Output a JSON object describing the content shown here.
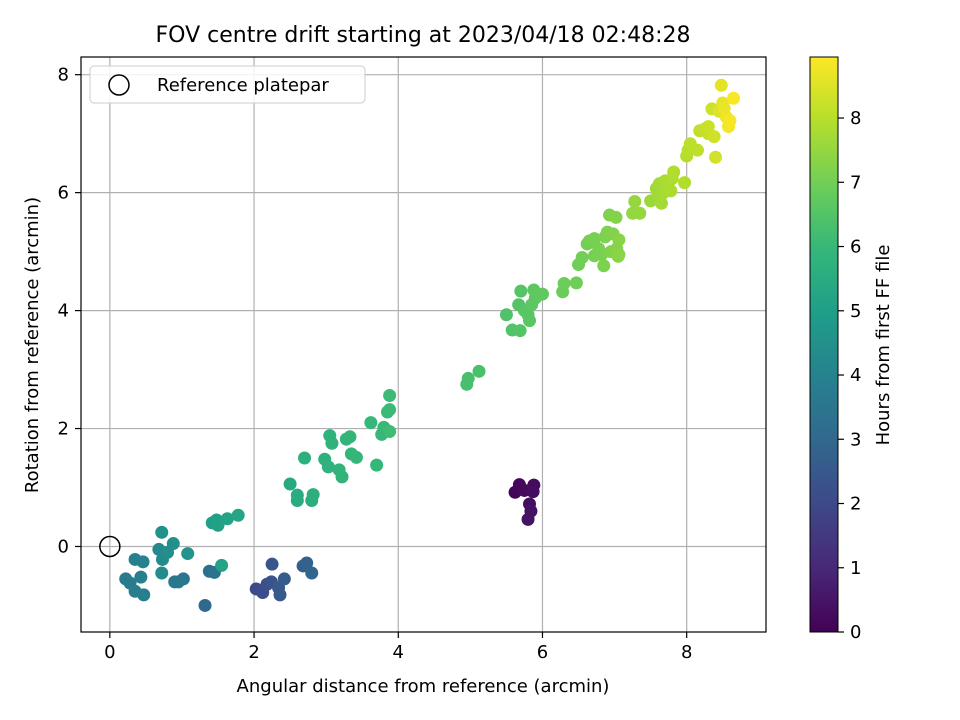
{
  "colors": {
    "grid": "#b0b0b0",
    "axis": "#000000",
    "viridis": [
      "#440154",
      "#482878",
      "#3e4989",
      "#31688e",
      "#26828e",
      "#1f9e89",
      "#35b779",
      "#6ece58",
      "#b5de2b",
      "#fde725"
    ]
  },
  "chart_data": {
    "type": "scatter",
    "title": "FOV centre drift starting at 2023/04/18 02:48:28",
    "xlabel": "Angular distance from reference (arcmin)",
    "ylabel": "Rotation from reference (arcmin)",
    "xlim": [
      -0.4,
      9.1
    ],
    "ylim": [
      -1.45,
      8.3
    ],
    "xticks": [
      0,
      2,
      4,
      6,
      8
    ],
    "yticks": [
      0,
      2,
      4,
      6,
      8
    ],
    "grid": true,
    "legend": {
      "position": "top-left",
      "entries": [
        "Reference platepar"
      ]
    },
    "reference_point": {
      "x": 0,
      "y": 0
    },
    "colorbar": {
      "label": "Hours from first FF file",
      "range": [
        0,
        8.95
      ],
      "ticks": [
        0,
        1,
        2,
        3,
        4,
        5,
        6,
        7,
        8
      ]
    },
    "points": [
      {
        "x": 5.62,
        "y": 0.92,
        "c": 0.1
      },
      {
        "x": 5.68,
        "y": 1.05,
        "c": 0.15
      },
      {
        "x": 5.75,
        "y": 0.95,
        "c": 0.2
      },
      {
        "x": 5.88,
        "y": 1.04,
        "c": 0.25
      },
      {
        "x": 5.87,
        "y": 0.93,
        "c": 0.3
      },
      {
        "x": 5.82,
        "y": 0.72,
        "c": 0.35
      },
      {
        "x": 5.84,
        "y": 0.6,
        "c": 0.4
      },
      {
        "x": 5.8,
        "y": 0.46,
        "c": 0.45
      },
      {
        "x": 2.03,
        "y": -0.72,
        "c": 2.0
      },
      {
        "x": 2.12,
        "y": -0.78,
        "c": 2.1
      },
      {
        "x": 2.18,
        "y": -0.64,
        "c": 2.2
      },
      {
        "x": 2.24,
        "y": -0.6,
        "c": 2.3
      },
      {
        "x": 2.25,
        "y": -0.3,
        "c": 2.4
      },
      {
        "x": 2.34,
        "y": -0.7,
        "c": 2.5
      },
      {
        "x": 2.36,
        "y": -0.82,
        "c": 2.55
      },
      {
        "x": 2.42,
        "y": -0.55,
        "c": 2.6
      },
      {
        "x": 2.68,
        "y": -0.33,
        "c": 2.7
      },
      {
        "x": 2.73,
        "y": -0.28,
        "c": 2.8
      },
      {
        "x": 2.8,
        "y": -0.45,
        "c": 2.9
      },
      {
        "x": 1.32,
        "y": -1.0,
        "c": 3.0
      },
      {
        "x": 1.38,
        "y": -0.42,
        "c": 3.3
      },
      {
        "x": 1.45,
        "y": -0.44,
        "c": 3.4
      },
      {
        "x": 1.02,
        "y": -0.55,
        "c": 3.5
      },
      {
        "x": 0.9,
        "y": -0.6,
        "c": 3.55
      },
      {
        "x": 0.95,
        "y": -0.6,
        "c": 3.6
      },
      {
        "x": 0.22,
        "y": -0.55,
        "c": 3.7
      },
      {
        "x": 0.28,
        "y": -0.62,
        "c": 3.75
      },
      {
        "x": 0.35,
        "y": -0.76,
        "c": 3.8
      },
      {
        "x": 0.47,
        "y": -0.82,
        "c": 3.85
      },
      {
        "x": 0.43,
        "y": -0.52,
        "c": 3.9
      },
      {
        "x": 0.35,
        "y": -0.22,
        "c": 3.95
      },
      {
        "x": 0.46,
        "y": -0.26,
        "c": 4.0
      },
      {
        "x": 0.68,
        "y": -0.05,
        "c": 4.2
      },
      {
        "x": 0.73,
        "y": -0.22,
        "c": 4.3
      },
      {
        "x": 0.72,
        "y": -0.45,
        "c": 4.35
      },
      {
        "x": 0.8,
        "y": -0.1,
        "c": 4.4
      },
      {
        "x": 0.88,
        "y": 0.05,
        "c": 4.45
      },
      {
        "x": 0.72,
        "y": 0.24,
        "c": 4.5
      },
      {
        "x": 1.08,
        "y": -0.12,
        "c": 4.6
      },
      {
        "x": 1.42,
        "y": 0.4,
        "c": 5.0
      },
      {
        "x": 1.48,
        "y": 0.45,
        "c": 5.05
      },
      {
        "x": 1.5,
        "y": 0.36,
        "c": 5.1
      },
      {
        "x": 1.55,
        "y": -0.32,
        "c": 5.15
      },
      {
        "x": 1.63,
        "y": 0.47,
        "c": 5.2
      },
      {
        "x": 1.78,
        "y": 0.53,
        "c": 5.25
      },
      {
        "x": 2.5,
        "y": 1.06,
        "c": 5.4
      },
      {
        "x": 2.6,
        "y": 0.78,
        "c": 5.45
      },
      {
        "x": 2.6,
        "y": 0.87,
        "c": 5.5
      },
      {
        "x": 2.8,
        "y": 0.78,
        "c": 5.55
      },
      {
        "x": 2.82,
        "y": 0.88,
        "c": 5.6
      },
      {
        "x": 2.7,
        "y": 1.5,
        "c": 5.65
      },
      {
        "x": 2.98,
        "y": 1.48,
        "c": 5.7
      },
      {
        "x": 3.03,
        "y": 1.35,
        "c": 5.72
      },
      {
        "x": 3.05,
        "y": 1.88,
        "c": 5.75
      },
      {
        "x": 3.08,
        "y": 1.75,
        "c": 5.78
      },
      {
        "x": 3.18,
        "y": 1.3,
        "c": 5.8
      },
      {
        "x": 3.22,
        "y": 1.18,
        "c": 5.82
      },
      {
        "x": 3.28,
        "y": 1.82,
        "c": 5.85
      },
      {
        "x": 3.33,
        "y": 1.86,
        "c": 5.88
      },
      {
        "x": 3.35,
        "y": 1.57,
        "c": 5.9
      },
      {
        "x": 3.42,
        "y": 1.51,
        "c": 5.92
      },
      {
        "x": 3.62,
        "y": 2.1,
        "c": 5.95
      },
      {
        "x": 3.7,
        "y": 1.38,
        "c": 5.97
      },
      {
        "x": 3.77,
        "y": 1.9,
        "c": 6.0
      },
      {
        "x": 3.8,
        "y": 2.02,
        "c": 6.02
      },
      {
        "x": 3.85,
        "y": 2.28,
        "c": 6.05
      },
      {
        "x": 3.88,
        "y": 2.32,
        "c": 6.07
      },
      {
        "x": 3.88,
        "y": 2.56,
        "c": 6.1
      },
      {
        "x": 3.88,
        "y": 1.95,
        "c": 6.12
      },
      {
        "x": 4.95,
        "y": 2.75,
        "c": 6.3
      },
      {
        "x": 4.97,
        "y": 2.85,
        "c": 6.32
      },
      {
        "x": 5.12,
        "y": 2.97,
        "c": 6.35
      },
      {
        "x": 5.5,
        "y": 3.93,
        "c": 6.45
      },
      {
        "x": 5.58,
        "y": 3.67,
        "c": 6.48
      },
      {
        "x": 5.67,
        "y": 4.1,
        "c": 6.5
      },
      {
        "x": 5.69,
        "y": 3.66,
        "c": 6.52
      },
      {
        "x": 5.7,
        "y": 4.33,
        "c": 6.55
      },
      {
        "x": 5.75,
        "y": 4.0,
        "c": 6.57
      },
      {
        "x": 5.8,
        "y": 3.93,
        "c": 6.6
      },
      {
        "x": 5.82,
        "y": 3.83,
        "c": 6.62
      },
      {
        "x": 5.85,
        "y": 4.1,
        "c": 6.64
      },
      {
        "x": 5.88,
        "y": 4.35,
        "c": 6.66
      },
      {
        "x": 5.9,
        "y": 4.21,
        "c": 6.68
      },
      {
        "x": 5.95,
        "y": 4.27,
        "c": 6.7
      },
      {
        "x": 6.0,
        "y": 4.28,
        "c": 6.72
      },
      {
        "x": 6.28,
        "y": 4.32,
        "c": 6.9
      },
      {
        "x": 6.3,
        "y": 4.46,
        "c": 6.92
      },
      {
        "x": 6.47,
        "y": 4.47,
        "c": 6.95
      },
      {
        "x": 6.5,
        "y": 4.78,
        "c": 6.98
      },
      {
        "x": 6.55,
        "y": 4.9,
        "c": 7.0
      },
      {
        "x": 6.62,
        "y": 5.13,
        "c": 7.02
      },
      {
        "x": 6.65,
        "y": 5.18,
        "c": 7.04
      },
      {
        "x": 6.72,
        "y": 4.93,
        "c": 7.06
      },
      {
        "x": 6.72,
        "y": 5.22,
        "c": 7.08
      },
      {
        "x": 6.78,
        "y": 5.05,
        "c": 7.1
      },
      {
        "x": 6.82,
        "y": 4.95,
        "c": 7.12
      },
      {
        "x": 6.85,
        "y": 4.76,
        "c": 7.14
      },
      {
        "x": 6.87,
        "y": 5.25,
        "c": 7.16
      },
      {
        "x": 6.9,
        "y": 5.33,
        "c": 7.18
      },
      {
        "x": 6.93,
        "y": 5.62,
        "c": 7.2
      },
      {
        "x": 6.95,
        "y": 5.0,
        "c": 7.22
      },
      {
        "x": 6.98,
        "y": 5.3,
        "c": 7.24
      },
      {
        "x": 7.02,
        "y": 5.58,
        "c": 7.26
      },
      {
        "x": 7.03,
        "y": 5.05,
        "c": 7.28
      },
      {
        "x": 7.05,
        "y": 4.92,
        "c": 7.3
      },
      {
        "x": 7.06,
        "y": 5.2,
        "c": 7.32
      },
      {
        "x": 7.06,
        "y": 4.95,
        "c": 7.34
      },
      {
        "x": 7.25,
        "y": 5.65,
        "c": 7.5
      },
      {
        "x": 7.28,
        "y": 5.85,
        "c": 7.52
      },
      {
        "x": 7.35,
        "y": 5.65,
        "c": 7.54
      },
      {
        "x": 7.5,
        "y": 5.86,
        "c": 7.6
      },
      {
        "x": 7.58,
        "y": 6.07,
        "c": 7.65
      },
      {
        "x": 7.6,
        "y": 5.97,
        "c": 7.68
      },
      {
        "x": 7.62,
        "y": 6.15,
        "c": 7.7
      },
      {
        "x": 7.65,
        "y": 5.82,
        "c": 7.72
      },
      {
        "x": 7.68,
        "y": 6.0,
        "c": 7.75
      },
      {
        "x": 7.7,
        "y": 6.2,
        "c": 7.77
      },
      {
        "x": 7.72,
        "y": 6.07,
        "c": 7.8
      },
      {
        "x": 7.75,
        "y": 6.18,
        "c": 7.82
      },
      {
        "x": 7.78,
        "y": 6.03,
        "c": 7.84
      },
      {
        "x": 7.8,
        "y": 6.24,
        "c": 7.86
      },
      {
        "x": 7.82,
        "y": 6.35,
        "c": 7.88
      },
      {
        "x": 7.97,
        "y": 6.17,
        "c": 7.92
      },
      {
        "x": 8.0,
        "y": 6.62,
        "c": 7.96
      },
      {
        "x": 8.02,
        "y": 6.72,
        "c": 8.0
      },
      {
        "x": 8.05,
        "y": 6.83,
        "c": 8.04
      },
      {
        "x": 8.15,
        "y": 6.72,
        "c": 8.08
      },
      {
        "x": 8.18,
        "y": 7.05,
        "c": 8.12
      },
      {
        "x": 8.25,
        "y": 7.08,
        "c": 8.16
      },
      {
        "x": 8.3,
        "y": 7.0,
        "c": 8.2
      },
      {
        "x": 8.3,
        "y": 7.12,
        "c": 8.24
      },
      {
        "x": 8.35,
        "y": 7.42,
        "c": 8.28
      },
      {
        "x": 8.38,
        "y": 6.95,
        "c": 8.32
      },
      {
        "x": 8.4,
        "y": 6.6,
        "c": 8.36
      },
      {
        "x": 8.45,
        "y": 7.38,
        "c": 8.5
      },
      {
        "x": 8.48,
        "y": 7.82,
        "c": 8.6
      },
      {
        "x": 8.5,
        "y": 7.52,
        "c": 8.65
      },
      {
        "x": 8.52,
        "y": 7.43,
        "c": 8.7
      },
      {
        "x": 8.55,
        "y": 7.28,
        "c": 8.75
      },
      {
        "x": 8.58,
        "y": 7.12,
        "c": 8.8
      },
      {
        "x": 8.6,
        "y": 7.22,
        "c": 8.85
      },
      {
        "x": 8.65,
        "y": 7.6,
        "c": 8.9
      }
    ]
  }
}
